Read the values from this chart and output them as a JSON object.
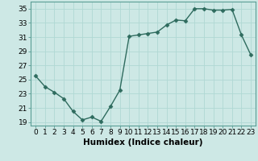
{
  "x": [
    0,
    1,
    2,
    3,
    4,
    5,
    6,
    7,
    8,
    9,
    10,
    11,
    12,
    13,
    14,
    15,
    16,
    17,
    18,
    19,
    20,
    21,
    22,
    23
  ],
  "y": [
    25.5,
    24.0,
    23.2,
    22.3,
    20.5,
    19.3,
    19.7,
    19.1,
    21.2,
    23.5,
    31.1,
    31.3,
    31.5,
    31.7,
    32.7,
    33.4,
    33.3,
    35.0,
    35.0,
    34.8,
    34.8,
    34.9,
    31.3,
    28.5
  ],
  "line_color": "#2e6b5e",
  "marker": "D",
  "markersize": 2.5,
  "linewidth": 1.0,
  "bg_color": "#cde8e5",
  "grid_color": "#b0d8d4",
  "xlabel": "Humidex (Indice chaleur)",
  "xlabel_fontsize": 7.5,
  "tick_fontsize": 6.5,
  "xlim": [
    -0.5,
    23.5
  ],
  "ylim": [
    18.5,
    36.0
  ],
  "yticks": [
    19,
    21,
    23,
    25,
    27,
    29,
    31,
    33,
    35
  ],
  "xticks": [
    0,
    1,
    2,
    3,
    4,
    5,
    6,
    7,
    8,
    9,
    10,
    11,
    12,
    13,
    14,
    15,
    16,
    17,
    18,
    19,
    20,
    21,
    22,
    23
  ]
}
